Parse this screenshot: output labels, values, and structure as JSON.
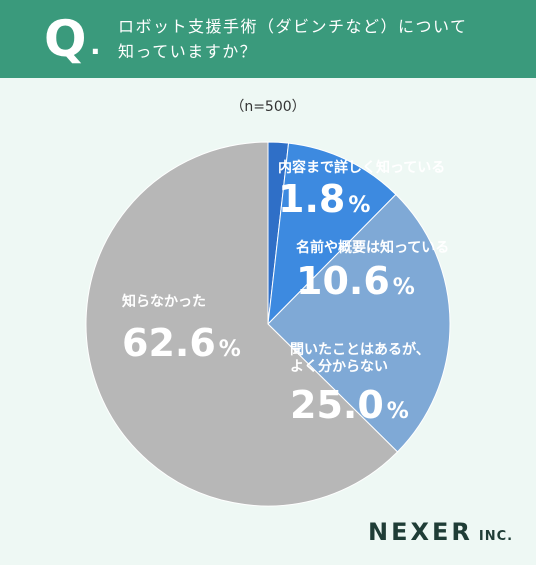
{
  "question": {
    "mark": "Q",
    "dot": ".",
    "line1": "ロボット支援手術（ダビンチなど）について",
    "line2": "知っていますか？"
  },
  "sample_size": "（n=500）",
  "colors": {
    "header": "#3a9a7c",
    "background": "#eef8f4"
  },
  "chart_data": {
    "type": "pie",
    "start": "12 o'clock",
    "direction": "clockwise",
    "slices": [
      {
        "label": "内容まで詳しく知っている",
        "label_lines": [
          "内容まで詳しく知っている"
        ],
        "value": 1.8,
        "display": "1.8",
        "color": "#2f6fc7"
      },
      {
        "label": "名前や概要は知っている",
        "label_lines": [
          "名前や概要は知っている"
        ],
        "value": 10.6,
        "display": "10.6",
        "color": "#3d8ae0"
      },
      {
        "label": "聞いたことはあるが、よく分からない",
        "label_lines": [
          "聞いたことはあるが、",
          "よく分からない"
        ],
        "value": 25.0,
        "display": "25.0",
        "color": "#7fa9d6"
      },
      {
        "label": "知らなかった",
        "label_lines": [
          "知らなかった"
        ],
        "value": 62.6,
        "display": "62.6",
        "color": "#b7b7b7"
      }
    ],
    "unit": "%"
  },
  "logo": {
    "main": "NEXER",
    "suffix": "INC."
  }
}
